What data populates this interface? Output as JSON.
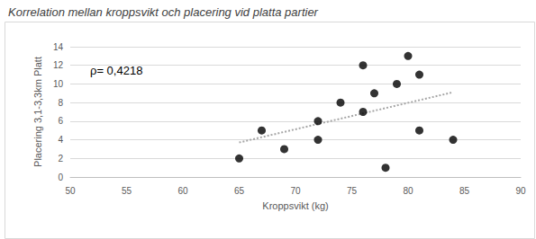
{
  "chart_data": {
    "type": "scatter",
    "title": "Korrelation mellan kroppsvikt och placering vid platta partier",
    "x_label": "Kroppsvikt (kg)",
    "y_label": "Placering 3,1-3,3km Platt",
    "annotation": "ρ= 0,4218",
    "series": [
      {
        "type": "scatter",
        "color": "#000000",
        "marker": "circle",
        "x": [
          65,
          67,
          69,
          72,
          72,
          74,
          76,
          76,
          77,
          78,
          79,
          80,
          81,
          81,
          84
        ],
        "values": [
          2,
          5,
          3,
          6,
          4,
          8,
          12,
          7,
          9,
          1,
          10,
          13,
          11,
          5,
          4
        ]
      },
      {
        "type": "line",
        "color": "#a6a6a6",
        "line_style": "dotted",
        "x": [
          65,
          84
        ],
        "values": [
          3.71,
          9.11
        ]
      }
    ],
    "xlim": [
      50,
      90
    ],
    "xticks": [
      50,
      55,
      60,
      65,
      70,
      75,
      80,
      85,
      90
    ],
    "ylim": [
      0,
      14
    ],
    "yticks": [
      0,
      2,
      4,
      6,
      8,
      10,
      12,
      14
    ],
    "grid": true
  }
}
